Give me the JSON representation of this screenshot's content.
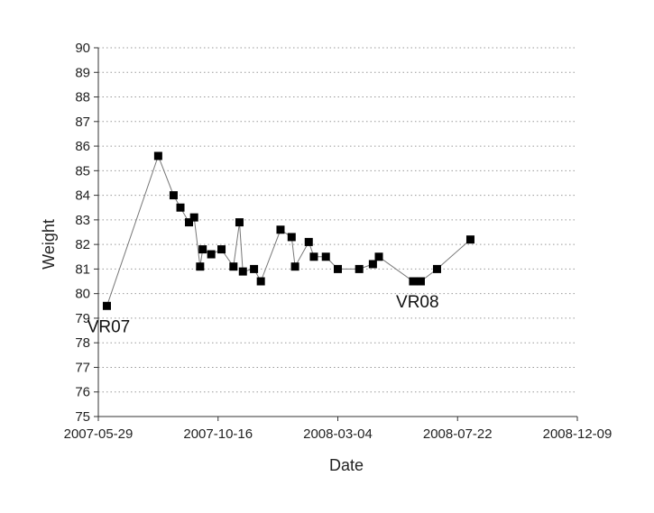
{
  "chart_data": {
    "type": "scatter",
    "xlabel": "Date",
    "ylabel": "Weight",
    "xlim": [
      "2007-05-29",
      "2008-12-09"
    ],
    "ylim": [
      75,
      90
    ],
    "x_ticks": [
      "2007-05-29",
      "2007-10-16",
      "2008-03-04",
      "2008-07-22",
      "2008-12-09"
    ],
    "y_ticks": [
      "75",
      "76",
      "77",
      "78",
      "79",
      "80",
      "81",
      "82",
      "83",
      "84",
      "85",
      "86",
      "87",
      "88",
      "89",
      "90"
    ],
    "grid": {
      "horizontal": true,
      "style": "dotted"
    },
    "connect_points": true,
    "marker": "square",
    "colors": {
      "marker": "#000000",
      "line": "#777777",
      "grid": "#999999",
      "axis": "#333333"
    },
    "series": [
      {
        "x": [
          "2007-06-08",
          "2007-08-07",
          "2007-08-25",
          "2007-09-02",
          "2007-09-12",
          "2007-09-18",
          "2007-09-25",
          "2007-09-28",
          "2007-10-08",
          "2007-10-20",
          "2007-11-03",
          "2007-11-10",
          "2007-11-14",
          "2007-11-27",
          "2007-12-05",
          "2007-12-28",
          "2008-01-10",
          "2008-01-14",
          "2008-01-30",
          "2008-02-05",
          "2008-02-19",
          "2008-03-04",
          "2008-03-29",
          "2008-04-14",
          "2008-04-21",
          "2008-05-31",
          "2008-06-09",
          "2008-06-28",
          "2008-08-06"
        ],
        "y": [
          79.5,
          85.6,
          84.0,
          83.5,
          82.9,
          83.1,
          81.1,
          81.8,
          81.6,
          81.8,
          81.1,
          82.9,
          80.9,
          81.0,
          80.5,
          82.6,
          82.3,
          81.1,
          82.1,
          81.5,
          81.5,
          81.0,
          81.0,
          81.2,
          81.5,
          80.5,
          80.5,
          81.0,
          82.2
        ]
      }
    ],
    "annotations": [
      {
        "text": "VR07",
        "x": "2007-06-08",
        "y": 79.5
      },
      {
        "text": "VR08",
        "x": "2008-06-03",
        "y": 80.5
      }
    ]
  }
}
